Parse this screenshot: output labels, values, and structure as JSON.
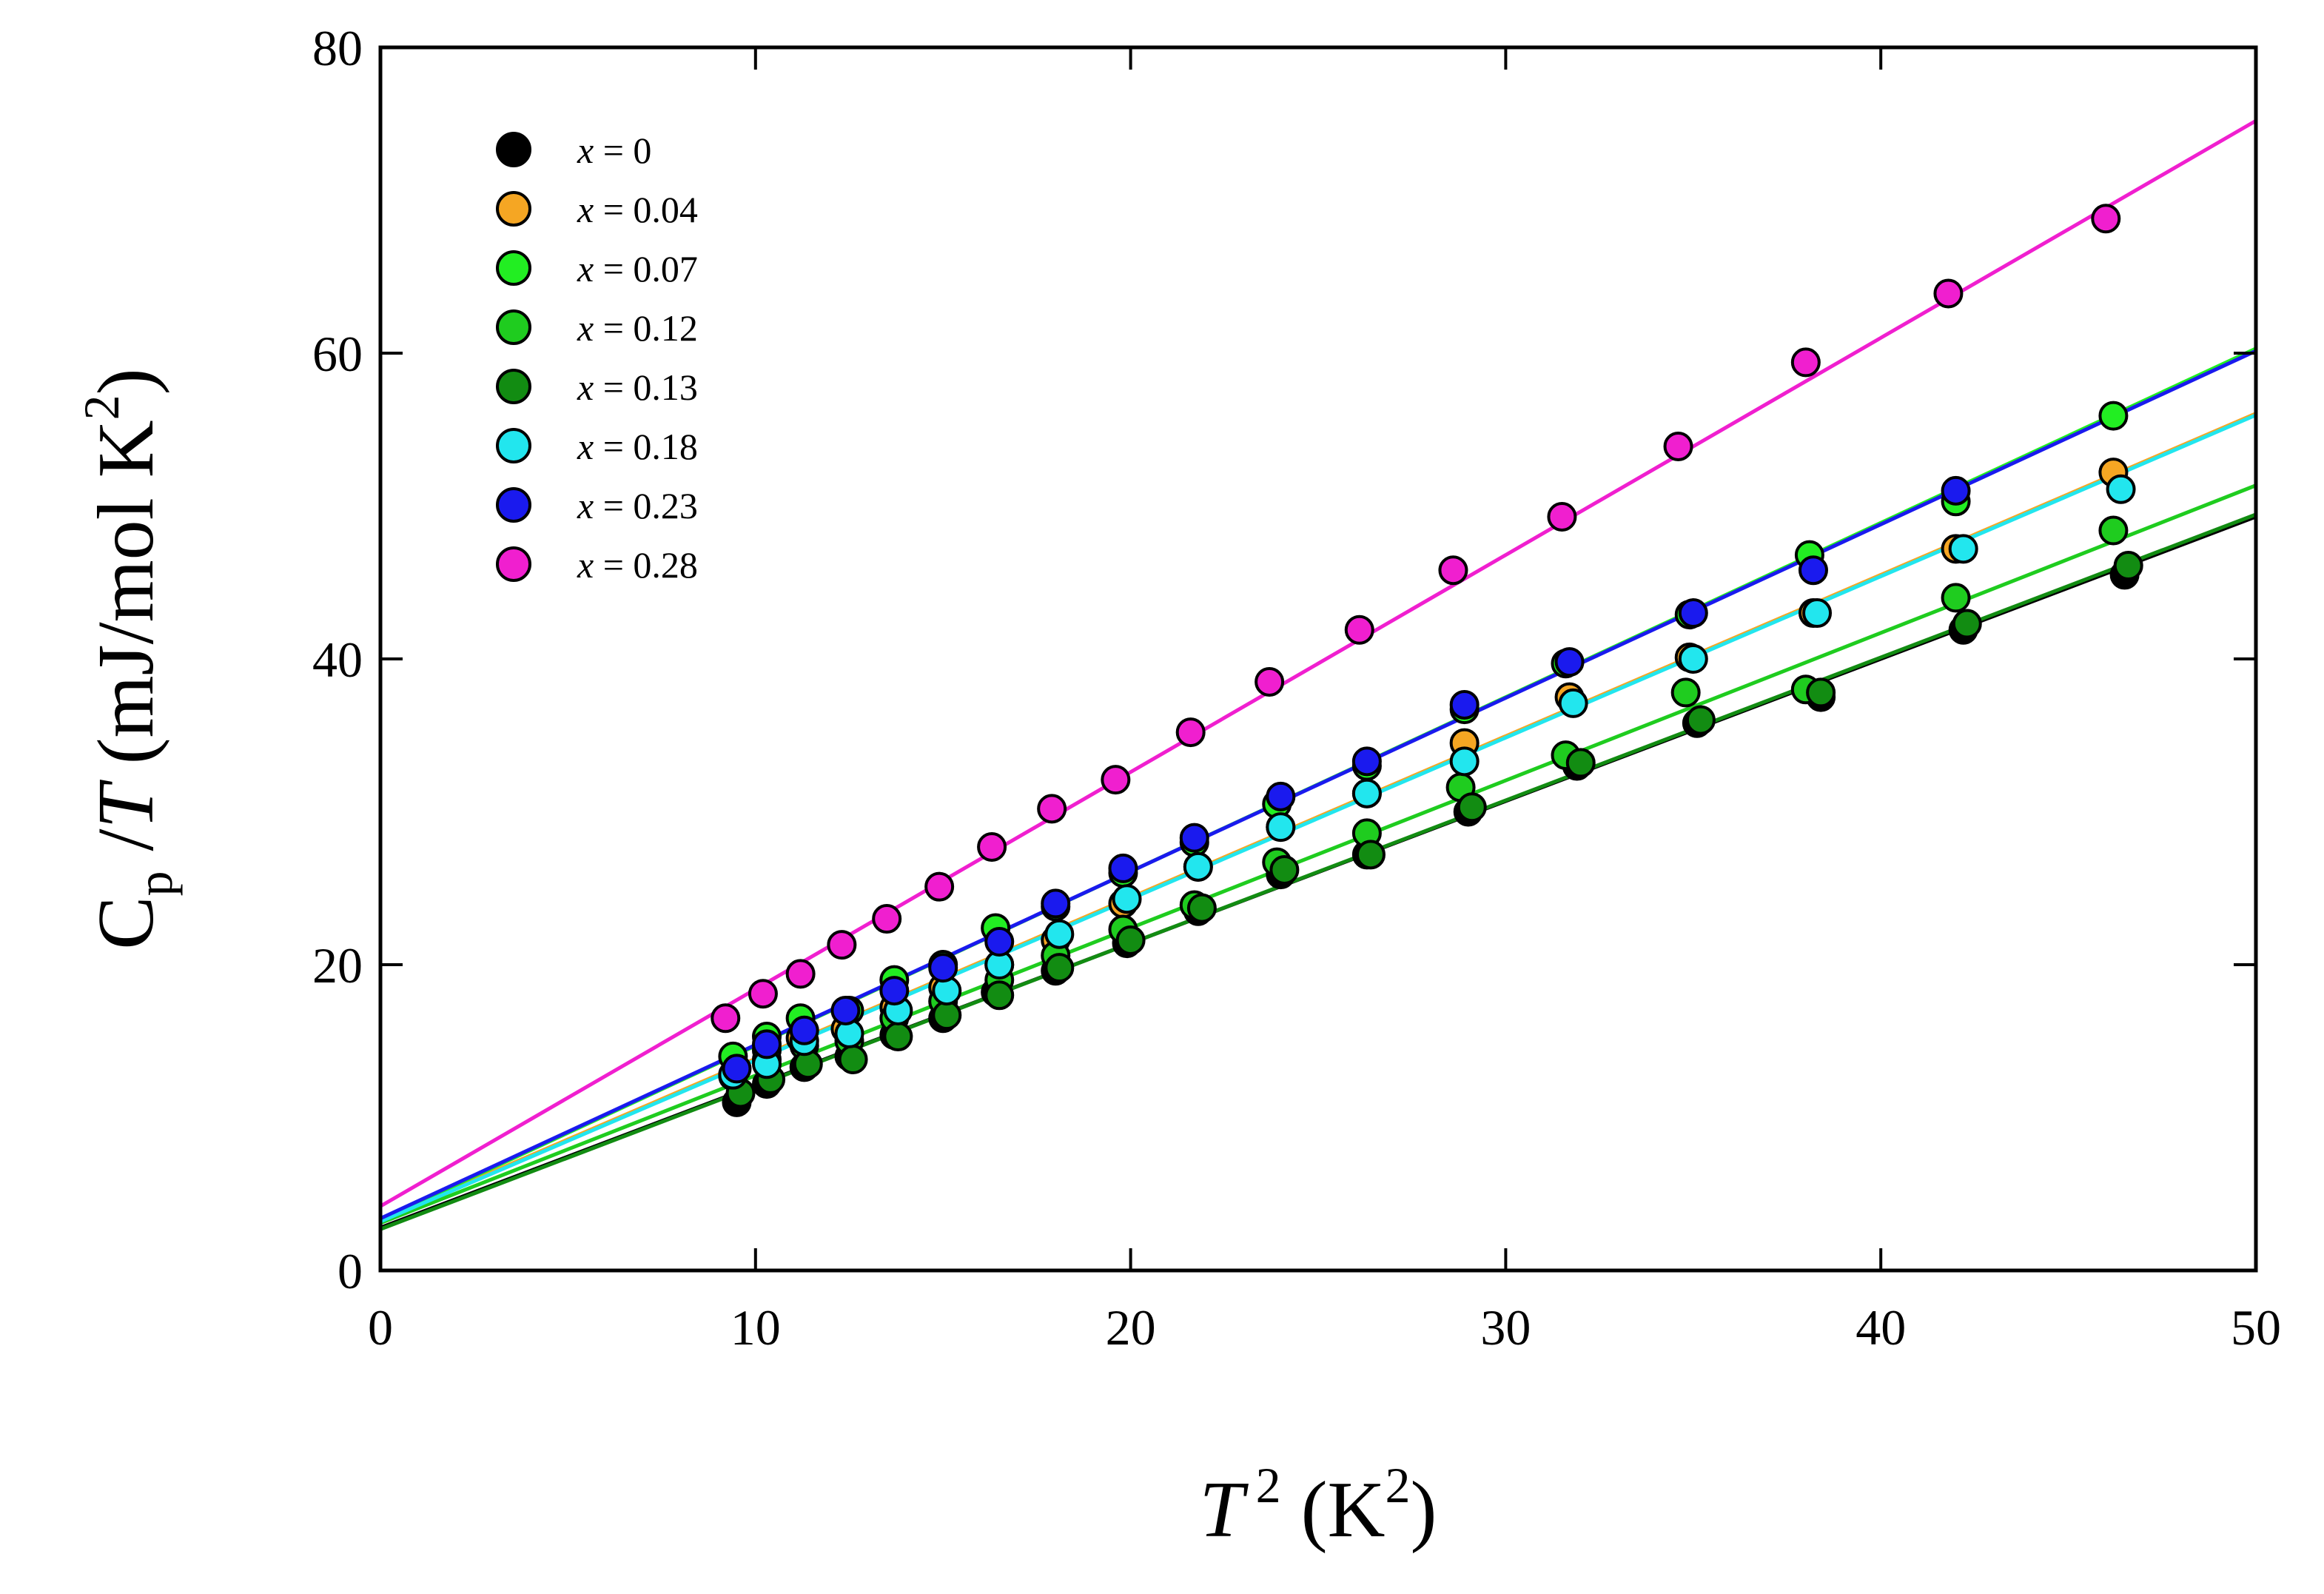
{
  "chart_data": {
    "type": "scatter",
    "title": "",
    "xlabel_var": "T",
    "xlabel_sup": "2",
    "xlabel_unit_open": " (K",
    "xlabel_unit_sup": "2",
    "xlabel_unit_close": ")",
    "ylabel_main": "C",
    "ylabel_sub": "p",
    "ylabel_sep": " /",
    "ylabel_var": "T",
    "ylabel_unit_open": " (mJ/mol K",
    "ylabel_unit_sup": "2",
    "ylabel_unit_close": ")",
    "xlim": [
      0,
      50
    ],
    "ylim": [
      0,
      80
    ],
    "xticks": [
      0,
      10,
      20,
      30,
      40,
      50
    ],
    "yticks": [
      0,
      20,
      40,
      60,
      80
    ],
    "legend_position": "top-left",
    "series": [
      {
        "name": "x = 0",
        "var": "x",
        "value": " = 0",
        "color": "#000000",
        "fit": {
          "intercept": 2.8,
          "slope": 0.93
        },
        "points": [
          [
            9.5,
            11.0
          ],
          [
            10.3,
            12.2
          ],
          [
            11.3,
            13.3
          ],
          [
            12.5,
            14.0
          ],
          [
            13.7,
            15.4
          ],
          [
            15.0,
            16.5
          ],
          [
            16.4,
            18.2
          ],
          [
            18.0,
            19.6
          ],
          [
            19.9,
            21.4
          ],
          [
            21.8,
            23.5
          ],
          [
            24.0,
            25.9
          ],
          [
            26.3,
            27.2
          ],
          [
            29.0,
            30.0
          ],
          [
            31.9,
            33.0
          ],
          [
            35.1,
            35.8
          ],
          [
            38.4,
            37.5
          ],
          [
            42.2,
            41.9
          ],
          [
            46.5,
            45.5
          ]
        ]
      },
      {
        "name": "x = 0.04",
        "var": "x",
        "value": " = 0.04",
        "color": "#f5a623",
        "fit": {
          "intercept": 3.3,
          "slope": 1.055
        },
        "points": [
          [
            9.4,
            12.8
          ],
          [
            10.3,
            13.8
          ],
          [
            11.2,
            15.2
          ],
          [
            12.4,
            15.8
          ],
          [
            13.7,
            17.2
          ],
          [
            15.0,
            18.5
          ],
          [
            16.5,
            20.0
          ],
          [
            18.0,
            21.6
          ],
          [
            19.8,
            24.0
          ],
          [
            21.8,
            26.4
          ],
          [
            24.0,
            29.0
          ],
          [
            26.3,
            31.2
          ],
          [
            28.9,
            34.5
          ],
          [
            31.7,
            37.5
          ],
          [
            34.9,
            40.1
          ],
          [
            38.2,
            43.0
          ],
          [
            42.0,
            47.2
          ],
          [
            46.2,
            52.2
          ]
        ]
      },
      {
        "name": "x = 0.07",
        "var": "x",
        "value": " = 0.07",
        "color": "#22ee22",
        "fit": {
          "intercept": 3.3,
          "slope": 1.14
        },
        "points": [
          [
            9.4,
            14.0
          ],
          [
            10.3,
            15.3
          ],
          [
            11.2,
            16.5
          ],
          [
            12.5,
            17.0
          ],
          [
            13.7,
            19.0
          ],
          [
            15.0,
            20.0
          ],
          [
            16.4,
            22.4
          ],
          [
            18.0,
            23.8
          ],
          [
            19.8,
            26.0
          ],
          [
            21.7,
            28.0
          ],
          [
            23.9,
            30.5
          ],
          [
            26.3,
            33.0
          ],
          [
            28.9,
            36.7
          ],
          [
            31.6,
            39.7
          ],
          [
            34.9,
            42.9
          ],
          [
            38.1,
            46.8
          ],
          [
            42.0,
            50.3
          ],
          [
            46.2,
            55.9
          ]
        ]
      },
      {
        "name": "x = 0.12",
        "var": "x",
        "value": " = 0.12",
        "color": "#1fcc1f",
        "fit": {
          "intercept": 3.1,
          "slope": 0.965
        },
        "points": [
          [
            9.4,
            12.7
          ],
          [
            10.3,
            14.4
          ],
          [
            11.3,
            14.7
          ],
          [
            12.5,
            15.0
          ],
          [
            13.7,
            16.5
          ],
          [
            15.0,
            17.6
          ],
          [
            16.5,
            19.0
          ],
          [
            18.0,
            20.6
          ],
          [
            19.8,
            22.3
          ],
          [
            21.7,
            23.9
          ],
          [
            23.9,
            26.7
          ],
          [
            26.3,
            28.6
          ],
          [
            28.8,
            31.6
          ],
          [
            31.6,
            33.7
          ],
          [
            34.8,
            37.8
          ],
          [
            38.0,
            38.0
          ],
          [
            42.0,
            44.0
          ],
          [
            46.2,
            48.4
          ]
        ]
      },
      {
        "name": "x = 0.13",
        "var": "x",
        "value": " = 0.13",
        "color": "#128c12",
        "fit": {
          "intercept": 2.7,
          "slope": 0.935
        },
        "points": [
          [
            9.6,
            11.6
          ],
          [
            10.4,
            12.5
          ],
          [
            11.4,
            13.5
          ],
          [
            12.6,
            13.8
          ],
          [
            13.8,
            15.3
          ],
          [
            15.1,
            16.7
          ],
          [
            16.5,
            18.0
          ],
          [
            18.1,
            19.8
          ],
          [
            20.0,
            21.6
          ],
          [
            21.9,
            23.7
          ],
          [
            24.1,
            26.2
          ],
          [
            26.4,
            27.2
          ],
          [
            29.1,
            30.3
          ],
          [
            32.0,
            33.2
          ],
          [
            35.2,
            36.0
          ],
          [
            38.4,
            37.8
          ],
          [
            42.3,
            42.3
          ],
          [
            46.6,
            46.1
          ]
        ]
      },
      {
        "name": "x = 0.18",
        "var": "x",
        "value": " = 0.18",
        "color": "#22e6ee",
        "fit": {
          "intercept": 3.2,
          "slope": 1.055
        },
        "points": [
          [
            9.4,
            12.8
          ],
          [
            10.3,
            13.5
          ],
          [
            11.3,
            15.0
          ],
          [
            12.5,
            15.5
          ],
          [
            13.8,
            17.0
          ],
          [
            15.1,
            18.3
          ],
          [
            16.5,
            20.0
          ],
          [
            18.1,
            22.0
          ],
          [
            19.9,
            24.3
          ],
          [
            21.8,
            26.4
          ],
          [
            24.0,
            29.0
          ],
          [
            26.3,
            31.2
          ],
          [
            28.9,
            33.3
          ],
          [
            31.8,
            37.1
          ],
          [
            35.0,
            40.0
          ],
          [
            38.3,
            43.0
          ],
          [
            42.2,
            47.2
          ],
          [
            46.4,
            51.1
          ]
        ]
      },
      {
        "name": "x = 0.23",
        "var": "x",
        "value": " = 0.23",
        "color": "#1a1aee",
        "fit": {
          "intercept": 3.4,
          "slope": 1.135
        },
        "points": [
          [
            9.5,
            13.2
          ],
          [
            10.3,
            14.8
          ],
          [
            11.3,
            15.7
          ],
          [
            12.4,
            17.0
          ],
          [
            13.7,
            18.3
          ],
          [
            15.0,
            19.8
          ],
          [
            16.5,
            21.5
          ],
          [
            18.0,
            24.0
          ],
          [
            19.8,
            26.3
          ],
          [
            21.7,
            28.3
          ],
          [
            24.0,
            31.0
          ],
          [
            26.3,
            33.3
          ],
          [
            28.9,
            37.0
          ],
          [
            31.7,
            39.8
          ],
          [
            35.0,
            43.0
          ],
          [
            38.2,
            45.8
          ],
          [
            42.0,
            51.0
          ]
        ]
      },
      {
        "name": "x = 0.28",
        "var": "x",
        "value": " = 0.28",
        "color": "#f01fcf",
        "fit": {
          "intercept": 4.2,
          "slope": 1.42
        },
        "points": [
          [
            9.2,
            16.5
          ],
          [
            10.2,
            18.1
          ],
          [
            11.2,
            19.4
          ],
          [
            12.3,
            21.3
          ],
          [
            13.5,
            23.0
          ],
          [
            14.9,
            25.1
          ],
          [
            16.3,
            27.7
          ],
          [
            17.9,
            30.2
          ],
          [
            19.6,
            32.1
          ],
          [
            21.6,
            35.2
          ],
          [
            23.7,
            38.5
          ],
          [
            26.1,
            41.9
          ],
          [
            28.6,
            45.8
          ],
          [
            31.5,
            49.3
          ],
          [
            34.6,
            53.9
          ],
          [
            38.0,
            59.4
          ],
          [
            41.8,
            63.9
          ],
          [
            46.0,
            68.8
          ]
        ]
      }
    ]
  }
}
